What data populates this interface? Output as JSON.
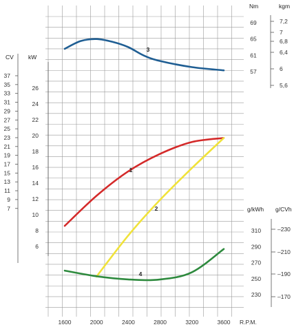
{
  "chart_data": {
    "type": "line",
    "title": "",
    "x": {
      "unit": "R.P.M.",
      "min": 1600,
      "max": 3600,
      "ticks": [
        "1600",
        "2000",
        "2400",
        "2800",
        "3200",
        "3600"
      ]
    },
    "axes": {
      "cv": {
        "unit": "CV",
        "ticks": [
          "37",
          "35",
          "33",
          "31",
          "29",
          "27",
          "25",
          "23",
          "21",
          "19",
          "17",
          "15",
          "13",
          "11",
          "9",
          "7"
        ]
      },
      "kw": {
        "unit": "kW",
        "ticks": [
          "26",
          "24",
          "22",
          "20",
          "18",
          "16",
          "14",
          "12",
          "10",
          "8",
          "6"
        ]
      },
      "nm": {
        "unit": "Nm",
        "ticks": [
          "69",
          "65",
          "61",
          "57"
        ]
      },
      "kgm": {
        "unit": "kgm",
        "ticks": [
          "7,2",
          "7",
          "6,8",
          "6,4",
          "6",
          "5,6"
        ]
      },
      "gkwh": {
        "unit": "g/kWh",
        "ticks": [
          "310",
          "290",
          "270",
          "250",
          "230"
        ]
      },
      "gcvh": {
        "unit": "g/CVh",
        "ticks": [
          "230",
          "210",
          "190",
          "170"
        ]
      }
    },
    "series": [
      {
        "name": "1",
        "quantity": "power",
        "axis": "kW",
        "color": "#d42a2a",
        "points": [
          [
            1600,
            8.6
          ],
          [
            2000,
            12.4
          ],
          [
            2400,
            15.5
          ],
          [
            2800,
            17.7
          ],
          [
            3200,
            19.2
          ],
          [
            3600,
            19.7
          ]
        ]
      },
      {
        "name": "2",
        "quantity": "power",
        "axis": "kW",
        "color": "#f0e23a",
        "points": [
          [
            2000,
            2.2
          ],
          [
            2400,
            7.4
          ],
          [
            2800,
            11.9
          ],
          [
            3200,
            15.9
          ],
          [
            3600,
            19.7
          ]
        ]
      },
      {
        "name": "3",
        "quantity": "torque",
        "axis": "Nm",
        "color": "#1f5e93",
        "points": [
          [
            1600,
            62.6
          ],
          [
            1800,
            64.5
          ],
          [
            2000,
            65.0
          ],
          [
            2200,
            64.3
          ],
          [
            2400,
            63.0
          ],
          [
            2600,
            60.9
          ],
          [
            2800,
            59.6
          ],
          [
            3200,
            58.1
          ],
          [
            3600,
            57.3
          ]
        ]
      },
      {
        "name": "4",
        "quantity": "specific fuel consumption",
        "axis": "g/kWh",
        "color": "#2e8a3e",
        "points": [
          [
            1600,
            260
          ],
          [
            2000,
            253
          ],
          [
            2400,
            249
          ],
          [
            2800,
            249
          ],
          [
            3200,
            258
          ],
          [
            3600,
            287
          ]
        ]
      }
    ]
  },
  "colors": {
    "grid": "#9a9a9a",
    "series1": "#d42a2a",
    "series2": "#f0e23a",
    "series3": "#1f5e93",
    "series4": "#2e8a3e"
  }
}
